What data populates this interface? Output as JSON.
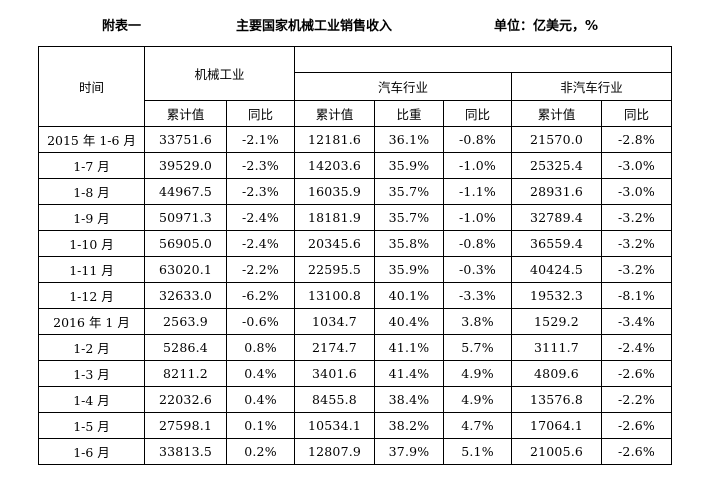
{
  "caption": {
    "left": "附表一",
    "title": "主要国家机械工业销售收入",
    "unit": "单位：亿美元，%"
  },
  "table": {
    "header": {
      "time": "时间",
      "group_machinery": "机械工业",
      "group_auto": "汽车行业",
      "group_non_auto": "非汽车行业",
      "sub": {
        "machinery_cum": "累计值",
        "machinery_yoy": "同比",
        "auto_cum": "累计值",
        "auto_share": "比重",
        "auto_yoy": "同比",
        "non_auto_cum": "累计值",
        "non_auto_yoy": "同比"
      }
    },
    "rows": [
      {
        "time": "2015 年 1-6 月",
        "m_cum": "33751.6",
        "m_yoy": "-2.1%",
        "a_cum": "12181.6",
        "a_share": "36.1%",
        "a_yoy": "-0.8%",
        "n_cum": "21570.0",
        "n_yoy": "-2.8%"
      },
      {
        "time": "1-7 月",
        "m_cum": "39529.0",
        "m_yoy": "-2.3%",
        "a_cum": "14203.6",
        "a_share": "35.9%",
        "a_yoy": "-1.0%",
        "n_cum": "25325.4",
        "n_yoy": "-3.0%"
      },
      {
        "time": "1-8 月",
        "m_cum": "44967.5",
        "m_yoy": "-2.3%",
        "a_cum": "16035.9",
        "a_share": "35.7%",
        "a_yoy": "-1.1%",
        "n_cum": "28931.6",
        "n_yoy": "-3.0%"
      },
      {
        "time": "1-9 月",
        "m_cum": "50971.3",
        "m_yoy": "-2.4%",
        "a_cum": "18181.9",
        "a_share": "35.7%",
        "a_yoy": "-1.0%",
        "n_cum": "32789.4",
        "n_yoy": "-3.2%"
      },
      {
        "time": "1-10 月",
        "m_cum": "56905.0",
        "m_yoy": "-2.4%",
        "a_cum": "20345.6",
        "a_share": "35.8%",
        "a_yoy": "-0.8%",
        "n_cum": "36559.4",
        "n_yoy": "-3.2%"
      },
      {
        "time": "1-11 月",
        "m_cum": "63020.1",
        "m_yoy": "-2.2%",
        "a_cum": "22595.5",
        "a_share": "35.9%",
        "a_yoy": "-0.3%",
        "n_cum": "40424.5",
        "n_yoy": "-3.2%"
      },
      {
        "time": "1-12 月",
        "m_cum": "32633.0",
        "m_yoy": "-6.2%",
        "a_cum": "13100.8",
        "a_share": "40.1%",
        "a_yoy": "-3.3%",
        "n_cum": "19532.3",
        "n_yoy": "-8.1%"
      },
      {
        "time": "2016 年 1 月",
        "m_cum": "2563.9",
        "m_yoy": "-0.6%",
        "a_cum": "1034.7",
        "a_share": "40.4%",
        "a_yoy": "3.8%",
        "n_cum": "1529.2",
        "n_yoy": "-3.4%"
      },
      {
        "time": "1-2 月",
        "m_cum": "5286.4",
        "m_yoy": "0.8%",
        "a_cum": "2174.7",
        "a_share": "41.1%",
        "a_yoy": "5.7%",
        "n_cum": "3111.7",
        "n_yoy": "-2.4%"
      },
      {
        "time": "1-3 月",
        "m_cum": "8211.2",
        "m_yoy": "0.4%",
        "a_cum": "3401.6",
        "a_share": "41.4%",
        "a_yoy": "4.9%",
        "n_cum": "4809.6",
        "n_yoy": "-2.6%"
      },
      {
        "time": "1-4 月",
        "m_cum": "22032.6",
        "m_yoy": "0.4%",
        "a_cum": "8455.8",
        "a_share": "38.4%",
        "a_yoy": "4.9%",
        "n_cum": "13576.8",
        "n_yoy": "-2.2%"
      },
      {
        "time": "1-5 月",
        "m_cum": "27598.1",
        "m_yoy": "0.1%",
        "a_cum": "10534.1",
        "a_share": "38.2%",
        "a_yoy": "4.7%",
        "n_cum": "17064.1",
        "n_yoy": "-2.6%"
      },
      {
        "time": "1-6 月",
        "m_cum": "33813.5",
        "m_yoy": "0.2%",
        "a_cum": "12807.9",
        "a_share": "37.9%",
        "a_yoy": "5.1%",
        "n_cum": "21005.6",
        "n_yoy": "-2.6%"
      }
    ]
  }
}
